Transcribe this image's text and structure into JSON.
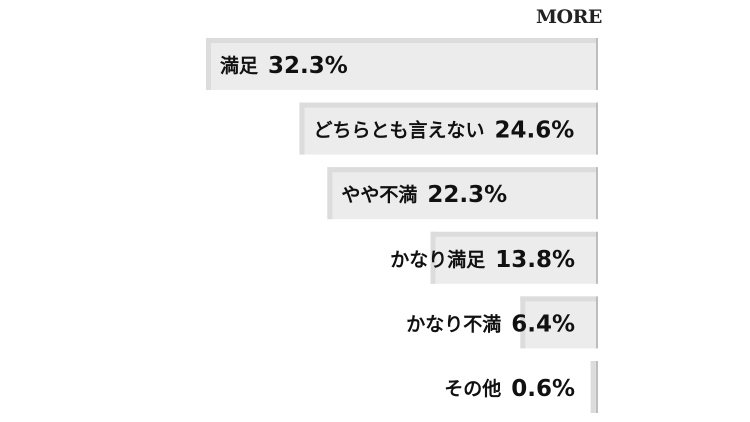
{
  "brand": "MORE",
  "chart_data": {
    "type": "bar",
    "orientation": "horizontal",
    "categories": [
      "満足",
      "どちらとも言えない",
      "やや不満",
      "かなり満足",
      "かなり不満",
      "その他"
    ],
    "value_labels": [
      "32.3%",
      "24.6%",
      "22.3%",
      "13.8%",
      "6.4%",
      "0.6%"
    ],
    "values": [
      32.3,
      24.6,
      22.3,
      13.8,
      6.4,
      0.6
    ],
    "unit": "%",
    "xlim": [
      0,
      32.3
    ],
    "bar_color": "#ececec",
    "bar_edge_color": "#dcdcdc",
    "text_color": "#111111"
  }
}
